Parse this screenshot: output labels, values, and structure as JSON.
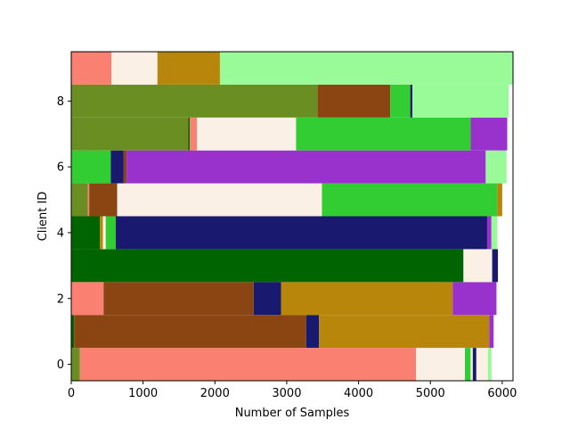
{
  "chart_data": {
    "type": "bar",
    "orientation": "horizontal",
    "stacked": true,
    "xlabel": "Number of Samples",
    "ylabel": "Client ID",
    "xlim": [
      0,
      6150
    ],
    "ylim": [
      -0.5,
      9.5
    ],
    "xticks": [
      0,
      1000,
      2000,
      3000,
      4000,
      5000,
      6000
    ],
    "yticks": [
      0,
      2,
      4,
      6,
      8
    ],
    "grid": false,
    "legend": "none",
    "clients": [
      {
        "id": 0,
        "segments": [
          {
            "value": 120,
            "color": "#6b8e23"
          },
          {
            "value": 4680,
            "color": "#fa8072"
          },
          {
            "value": 680,
            "color": "#faf0e6"
          },
          {
            "value": 80,
            "color": "#32cd32"
          },
          {
            "value": 30,
            "color": "#faf0e6"
          },
          {
            "value": 50,
            "color": "#191970"
          },
          {
            "value": 160,
            "color": "#faf0e6"
          },
          {
            "value": 50,
            "color": "#98fb98"
          }
        ]
      },
      {
        "id": 1,
        "segments": [
          {
            "value": 40,
            "color": "#006400"
          },
          {
            "value": 3230,
            "color": "#8b4513"
          },
          {
            "value": 180,
            "color": "#191970"
          },
          {
            "value": 2370,
            "color": "#b8860b"
          },
          {
            "value": 60,
            "color": "#9932cc"
          }
        ]
      },
      {
        "id": 2,
        "segments": [
          {
            "value": 450,
            "color": "#fa8072"
          },
          {
            "value": 2090,
            "color": "#8b4513"
          },
          {
            "value": 380,
            "color": "#191970"
          },
          {
            "value": 2390,
            "color": "#b8860b"
          },
          {
            "value": 610,
            "color": "#9932cc"
          }
        ]
      },
      {
        "id": 3,
        "segments": [
          {
            "value": 5460,
            "color": "#006400"
          },
          {
            "value": 400,
            "color": "#faf0e6"
          },
          {
            "value": 80,
            "color": "#191970"
          }
        ]
      },
      {
        "id": 4,
        "segments": [
          {
            "value": 400,
            "color": "#006400"
          },
          {
            "value": 40,
            "color": "#b8860b"
          },
          {
            "value": 40,
            "color": "#faf0e6"
          },
          {
            "value": 140,
            "color": "#32cd32"
          },
          {
            "value": 5170,
            "color": "#191970"
          },
          {
            "value": 60,
            "color": "#9932cc"
          },
          {
            "value": 80,
            "color": "#98fb98"
          }
        ]
      },
      {
        "id": 5,
        "segments": [
          {
            "value": 230,
            "color": "#6b8e23"
          },
          {
            "value": 20,
            "color": "#fa8072"
          },
          {
            "value": 390,
            "color": "#8b4513"
          },
          {
            "value": 2850,
            "color": "#faf0e6"
          },
          {
            "value": 2440,
            "color": "#32cd32"
          },
          {
            "value": 70,
            "color": "#b8860b"
          }
        ]
      },
      {
        "id": 6,
        "segments": [
          {
            "value": 550,
            "color": "#32cd32"
          },
          {
            "value": 180,
            "color": "#191970"
          },
          {
            "value": 40,
            "color": "#8b4513"
          },
          {
            "value": 5000,
            "color": "#9932cc"
          },
          {
            "value": 290,
            "color": "#98fb98"
          }
        ]
      },
      {
        "id": 7,
        "segments": [
          {
            "value": 1630,
            "color": "#6b8e23"
          },
          {
            "value": 20,
            "color": "#006400"
          },
          {
            "value": 100,
            "color": "#fa8072"
          },
          {
            "value": 1380,
            "color": "#faf0e6"
          },
          {
            "value": 2430,
            "color": "#32cd32"
          },
          {
            "value": 510,
            "color": "#9932cc"
          }
        ]
      },
      {
        "id": 8,
        "segments": [
          {
            "value": 3430,
            "color": "#6b8e23"
          },
          {
            "value": 1010,
            "color": "#8b4513"
          },
          {
            "value": 280,
            "color": "#32cd32"
          },
          {
            "value": 30,
            "color": "#191970"
          },
          {
            "value": 1340,
            "color": "#98fb98"
          }
        ]
      },
      {
        "id": 9,
        "segments": [
          {
            "value": 560,
            "color": "#fa8072"
          },
          {
            "value": 640,
            "color": "#faf0e6"
          },
          {
            "value": 870,
            "color": "#b8860b"
          },
          {
            "value": 4080,
            "color": "#98fb98"
          }
        ]
      }
    ]
  }
}
